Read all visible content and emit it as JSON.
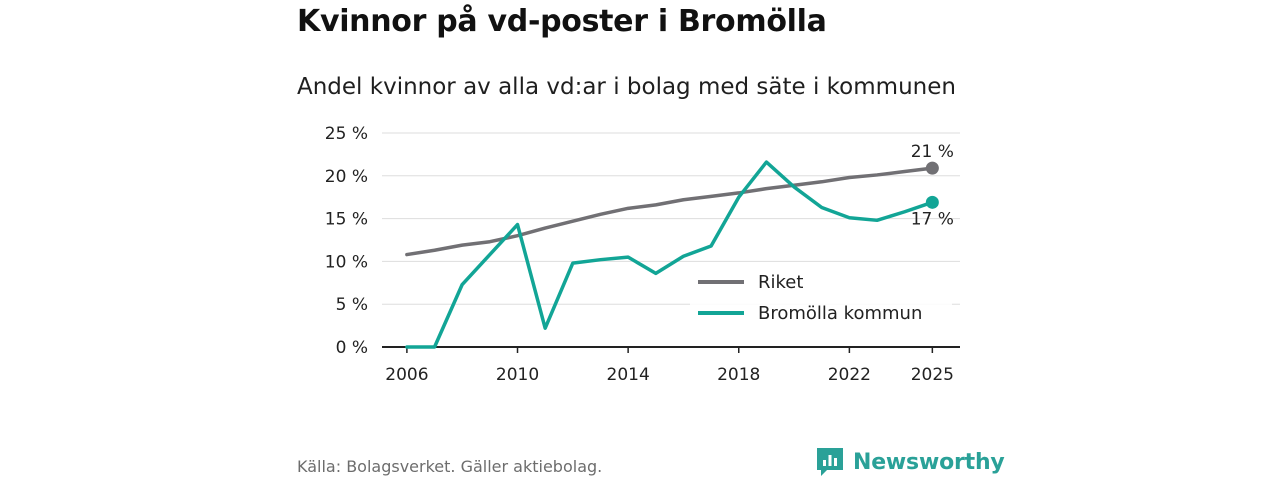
{
  "header": {
    "title": "Kvinnor på vd-poster i Bromölla",
    "subtitle": "Andel kvinnor av alla vd:ar i bolag med säte i kommunen"
  },
  "footer": {
    "source": "Källa: Bolagsverket. Gäller aktiebolag.",
    "brand": "Newsworthy"
  },
  "colors": {
    "riket": "#717074",
    "kommun": "#12a596",
    "grid": "#dddddd",
    "axis": "#222222",
    "brand": "#2aa198"
  },
  "chart_data": {
    "type": "line",
    "title": "Andel kvinnor av alla vd:ar i bolag med säte i kommunen",
    "xlabel": "",
    "ylabel": "",
    "xlim": [
      2005.1,
      2026.0
    ],
    "ylim": [
      0,
      25
    ],
    "yticks": [
      0,
      5,
      10,
      15,
      20,
      25
    ],
    "ytick_labels": [
      "0 %",
      "5 %",
      "10 %",
      "15 %",
      "20 %",
      "25 %"
    ],
    "xticks": [
      2006,
      2010,
      2014,
      2018,
      2022,
      2025
    ],
    "xtick_labels": [
      "2006",
      "2010",
      "2014",
      "2018",
      "2022",
      "2025"
    ],
    "grid": true,
    "legend": {
      "position": "bottom-right",
      "entries": [
        "Riket",
        "Bromölla kommun"
      ]
    },
    "x": [
      2006,
      2007,
      2008,
      2009,
      2010,
      2011,
      2012,
      2013,
      2014,
      2015,
      2016,
      2017,
      2018,
      2019,
      2020,
      2021,
      2022,
      2023,
      2024,
      2025
    ],
    "series": [
      {
        "name": "Riket",
        "values": [
          10.8,
          11.3,
          11.9,
          12.3,
          13.0,
          13.9,
          14.7,
          15.5,
          16.2,
          16.6,
          17.2,
          17.6,
          18.0,
          18.5,
          18.9,
          19.3,
          19.8,
          20.1,
          20.5,
          20.9
        ],
        "end_label": "21 %"
      },
      {
        "name": "Bromölla kommun",
        "values": [
          0,
          0,
          7.3,
          10.8,
          14.3,
          2.2,
          9.8,
          10.2,
          10.5,
          8.6,
          10.6,
          11.8,
          17.5,
          21.6,
          18.7,
          16.3,
          15.1,
          14.8,
          15.8,
          16.9
        ],
        "end_label": "17 %"
      }
    ]
  }
}
